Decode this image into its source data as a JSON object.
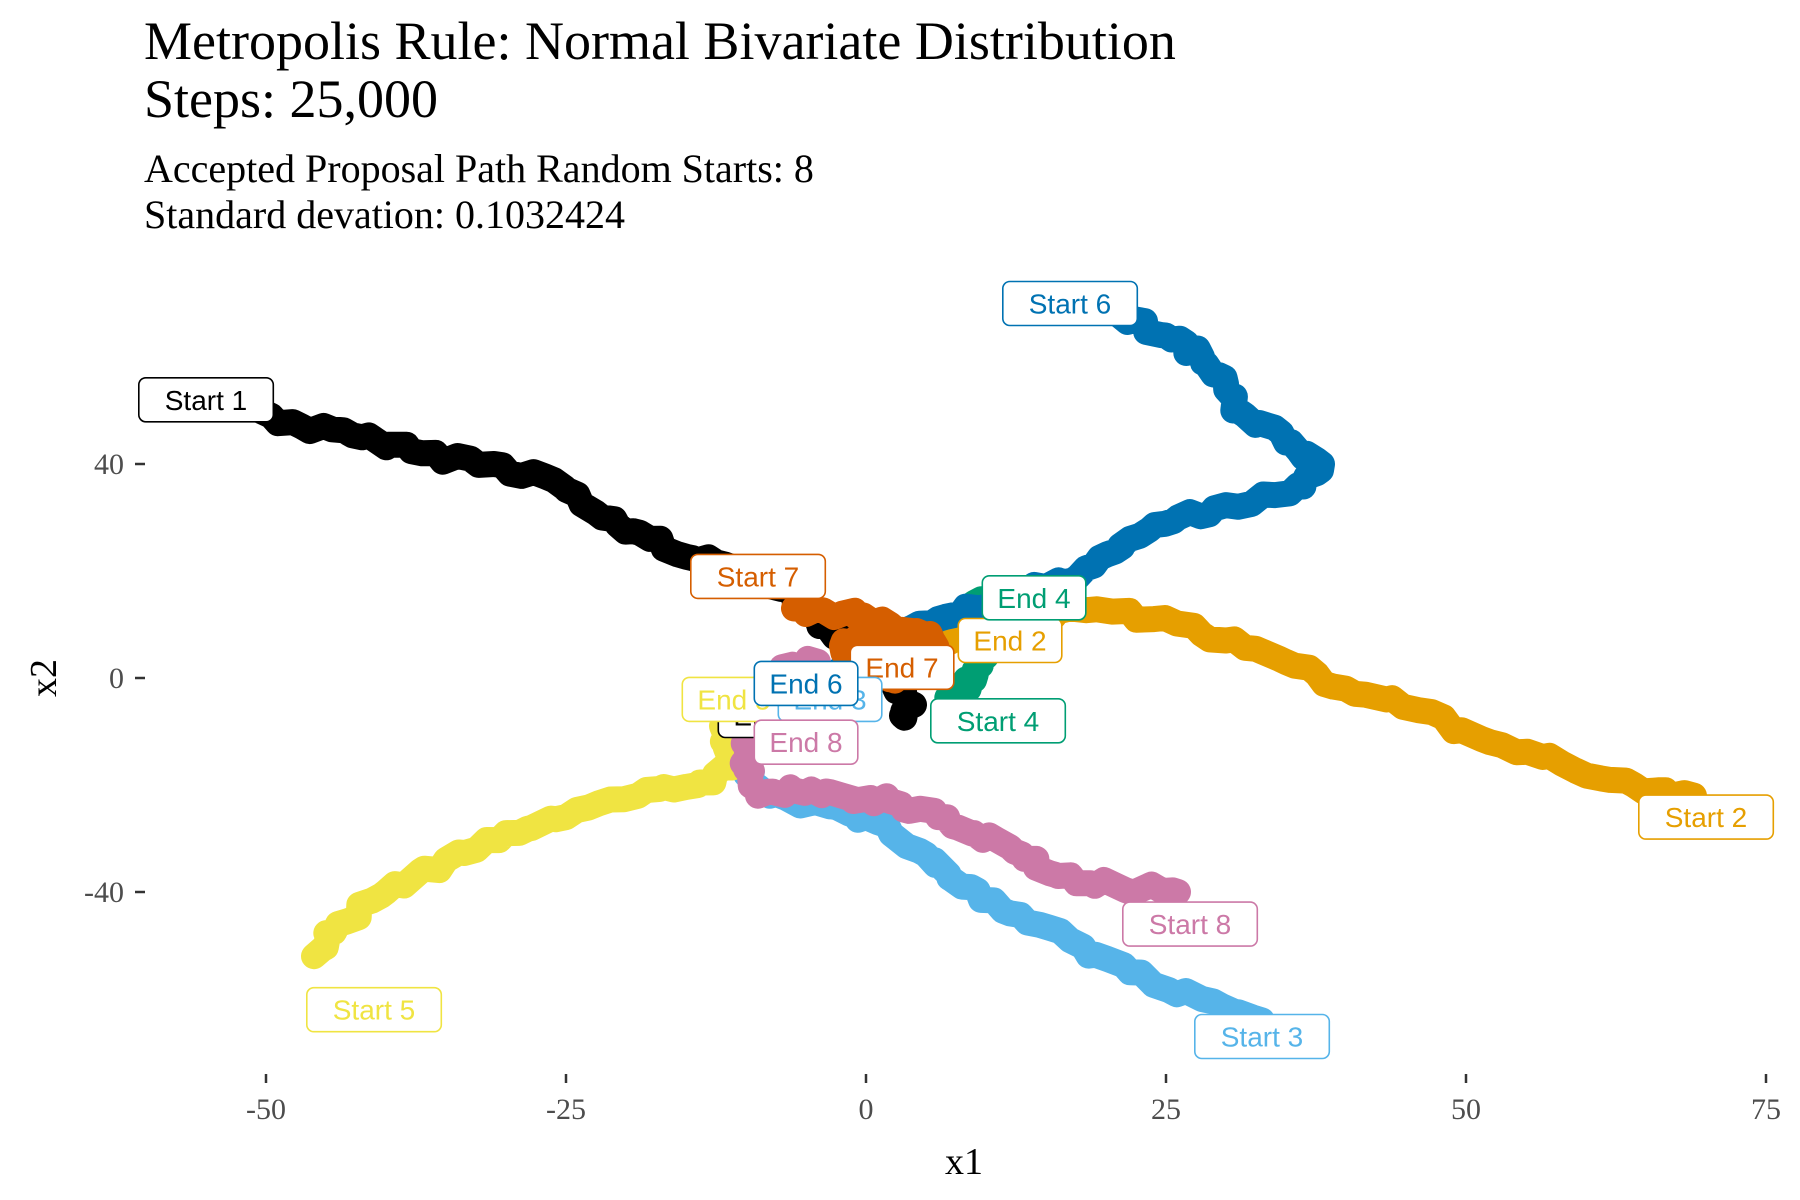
{
  "chart_data": {
    "type": "line",
    "title": "Metropolis Rule: Normal Bivariate Distribution",
    "title_line2": "Steps: 25,000",
    "subtitle": "Accepted Proposal Path Random Starts: 8",
    "subtitle_line2": "Standard devation: 0.1032424",
    "xlabel": "x1",
    "ylabel": "x2",
    "xlim": [
      -57,
      75
    ],
    "ylim": [
      -75,
      67
    ],
    "xticks": [
      -50,
      -25,
      0,
      25,
      50,
      75
    ],
    "xtick_labels": [
      "-50",
      "-25",
      "0",
      "25",
      "50",
      "75"
    ],
    "yticks": [
      -40,
      0,
      40
    ],
    "ytick_labels": [
      "-40",
      "0",
      "40"
    ],
    "grid": false,
    "legend": "none",
    "series": [
      {
        "start_label": "Start 1",
        "end_label": "End 1",
        "color": "#000000",
        "points": [
          [
            -52,
            51
          ],
          [
            -47,
            47
          ],
          [
            -42,
            45
          ],
          [
            -37,
            42
          ],
          [
            -31,
            40
          ],
          [
            -26,
            37
          ],
          [
            -22,
            30
          ],
          [
            -18,
            26
          ],
          [
            -14,
            22
          ],
          [
            -9,
            20
          ],
          [
            -6,
            16
          ],
          [
            -4,
            11
          ],
          [
            -2,
            7
          ],
          [
            0,
            4
          ],
          [
            2,
            0
          ],
          [
            4,
            -5
          ],
          [
            3,
            -7
          ]
        ]
      },
      {
        "start_label": "Start 2",
        "end_label": "End 2",
        "color": "#E69F00",
        "points": [
          [
            69,
            -22
          ],
          [
            64,
            -20
          ],
          [
            58,
            -16
          ],
          [
            52,
            -12
          ],
          [
            46,
            -6
          ],
          [
            40,
            -2
          ],
          [
            35,
            3
          ],
          [
            30,
            7
          ],
          [
            24,
            11
          ],
          [
            17,
            13
          ],
          [
            12,
            11
          ],
          [
            8,
            9
          ],
          [
            6,
            6
          ]
        ]
      },
      {
        "start_label": "Start 3",
        "end_label": "End 3",
        "color": "#56B4E9",
        "points": [
          [
            33,
            -64
          ],
          [
            28,
            -60
          ],
          [
            22,
            -55
          ],
          [
            17,
            -49
          ],
          [
            12,
            -44
          ],
          [
            8,
            -39
          ],
          [
            5,
            -33
          ],
          [
            0,
            -26
          ],
          [
            -3,
            -24
          ],
          [
            -8,
            -22
          ],
          [
            -10,
            -18
          ],
          [
            -9,
            -13
          ],
          [
            -5,
            -10
          ],
          [
            -2,
            -7
          ]
        ]
      },
      {
        "start_label": "Start 4",
        "end_label": "End 4",
        "color": "#009E73",
        "points": [
          [
            7,
            -4
          ],
          [
            8,
            -2
          ],
          [
            9,
            1
          ],
          [
            10,
            4
          ],
          [
            11,
            8
          ],
          [
            10,
            11
          ],
          [
            9,
            14
          ],
          [
            12,
            14
          ]
        ]
      },
      {
        "start_label": "Start 5",
        "end_label": "End 5",
        "color": "#F0E442",
        "points": [
          [
            -46,
            -52
          ],
          [
            -44,
            -46
          ],
          [
            -40,
            -40
          ],
          [
            -35,
            -34
          ],
          [
            -30,
            -29
          ],
          [
            -25,
            -26
          ],
          [
            -19,
            -22
          ],
          [
            -14,
            -20
          ],
          [
            -11,
            -16
          ],
          [
            -12,
            -9
          ],
          [
            -10,
            -4
          ],
          [
            -8,
            -2
          ]
        ]
      },
      {
        "start_label": "Start 6",
        "end_label": "End 6",
        "color": "#0072B2",
        "points": [
          [
            21,
            68
          ],
          [
            25,
            64
          ],
          [
            28,
            60
          ],
          [
            30,
            55
          ],
          [
            31,
            50
          ],
          [
            35,
            44
          ],
          [
            38,
            40
          ],
          [
            36,
            36
          ],
          [
            31,
            32
          ],
          [
            26,
            30
          ],
          [
            22,
            26
          ],
          [
            19,
            21
          ],
          [
            15,
            17
          ],
          [
            11,
            14
          ],
          [
            6,
            11
          ],
          [
            2,
            7
          ],
          [
            -1,
            4
          ],
          [
            -3,
            0
          ]
        ]
      },
      {
        "start_label": "Start 7",
        "end_label": "End 7",
        "color": "#D55E00",
        "points": [
          [
            -6,
            13
          ],
          [
            -2,
            12
          ],
          [
            2,
            10
          ],
          [
            5,
            8
          ],
          [
            6,
            5
          ],
          [
            4,
            2
          ],
          [
            2,
            0
          ],
          [
            0,
            3
          ],
          [
            -2,
            6
          ],
          [
            1,
            8
          ],
          [
            4,
            5
          ]
        ]
      },
      {
        "start_label": "Start 8",
        "end_label": "End 8",
        "color": "#CC79A7",
        "points": [
          [
            26,
            -40
          ],
          [
            21,
            -39
          ],
          [
            16,
            -37
          ],
          [
            13,
            -33
          ],
          [
            9,
            -29
          ],
          [
            6,
            -26
          ],
          [
            2,
            -23
          ],
          [
            -2,
            -22
          ],
          [
            -6,
            -21
          ],
          [
            -9,
            -22
          ],
          [
            -10,
            -17
          ],
          [
            -10,
            -12
          ],
          [
            -9,
            -7
          ],
          [
            -6,
            -3
          ],
          [
            -7,
            2
          ],
          [
            -4,
            3
          ]
        ]
      }
    ],
    "labels": [
      {
        "text": "Start 1",
        "x": -55,
        "y": 52,
        "color": "#000000"
      },
      {
        "text": "Start 7",
        "x": -9,
        "y": 19,
        "color": "#D55E00"
      },
      {
        "text": "Start 6",
        "x": 17,
        "y": 70,
        "color": "#0072B2"
      },
      {
        "text": "End 2",
        "x": 12,
        "y": 7,
        "color": "#E69F00"
      },
      {
        "text": "End 4",
        "x": 14,
        "y": 15,
        "color": "#009E73"
      },
      {
        "text": "End 7",
        "x": 3,
        "y": 2,
        "color": "#D55E00"
      },
      {
        "text": "End 1",
        "x": -8,
        "y": -7,
        "color": "#000000"
      },
      {
        "text": "End 5",
        "x": -11,
        "y": -4,
        "color": "#F0E442"
      },
      {
        "text": "End 3",
        "x": -3,
        "y": -4,
        "color": "#56B4E9"
      },
      {
        "text": "End 6",
        "x": -5,
        "y": -1,
        "color": "#0072B2"
      },
      {
        "text": "Start 4",
        "x": 11,
        "y": -8,
        "color": "#009E73"
      },
      {
        "text": "End 8",
        "x": -5,
        "y": -12,
        "color": "#CC79A7"
      },
      {
        "text": "Start 2",
        "x": 70,
        "y": -26,
        "color": "#E69F00"
      },
      {
        "text": "Start 8",
        "x": 27,
        "y": -46,
        "color": "#CC79A7"
      },
      {
        "text": "Start 5",
        "x": -41,
        "y": -62,
        "color": "#F0E442"
      },
      {
        "text": "Start 3",
        "x": 33,
        "y": -67,
        "color": "#56B4E9"
      }
    ]
  }
}
